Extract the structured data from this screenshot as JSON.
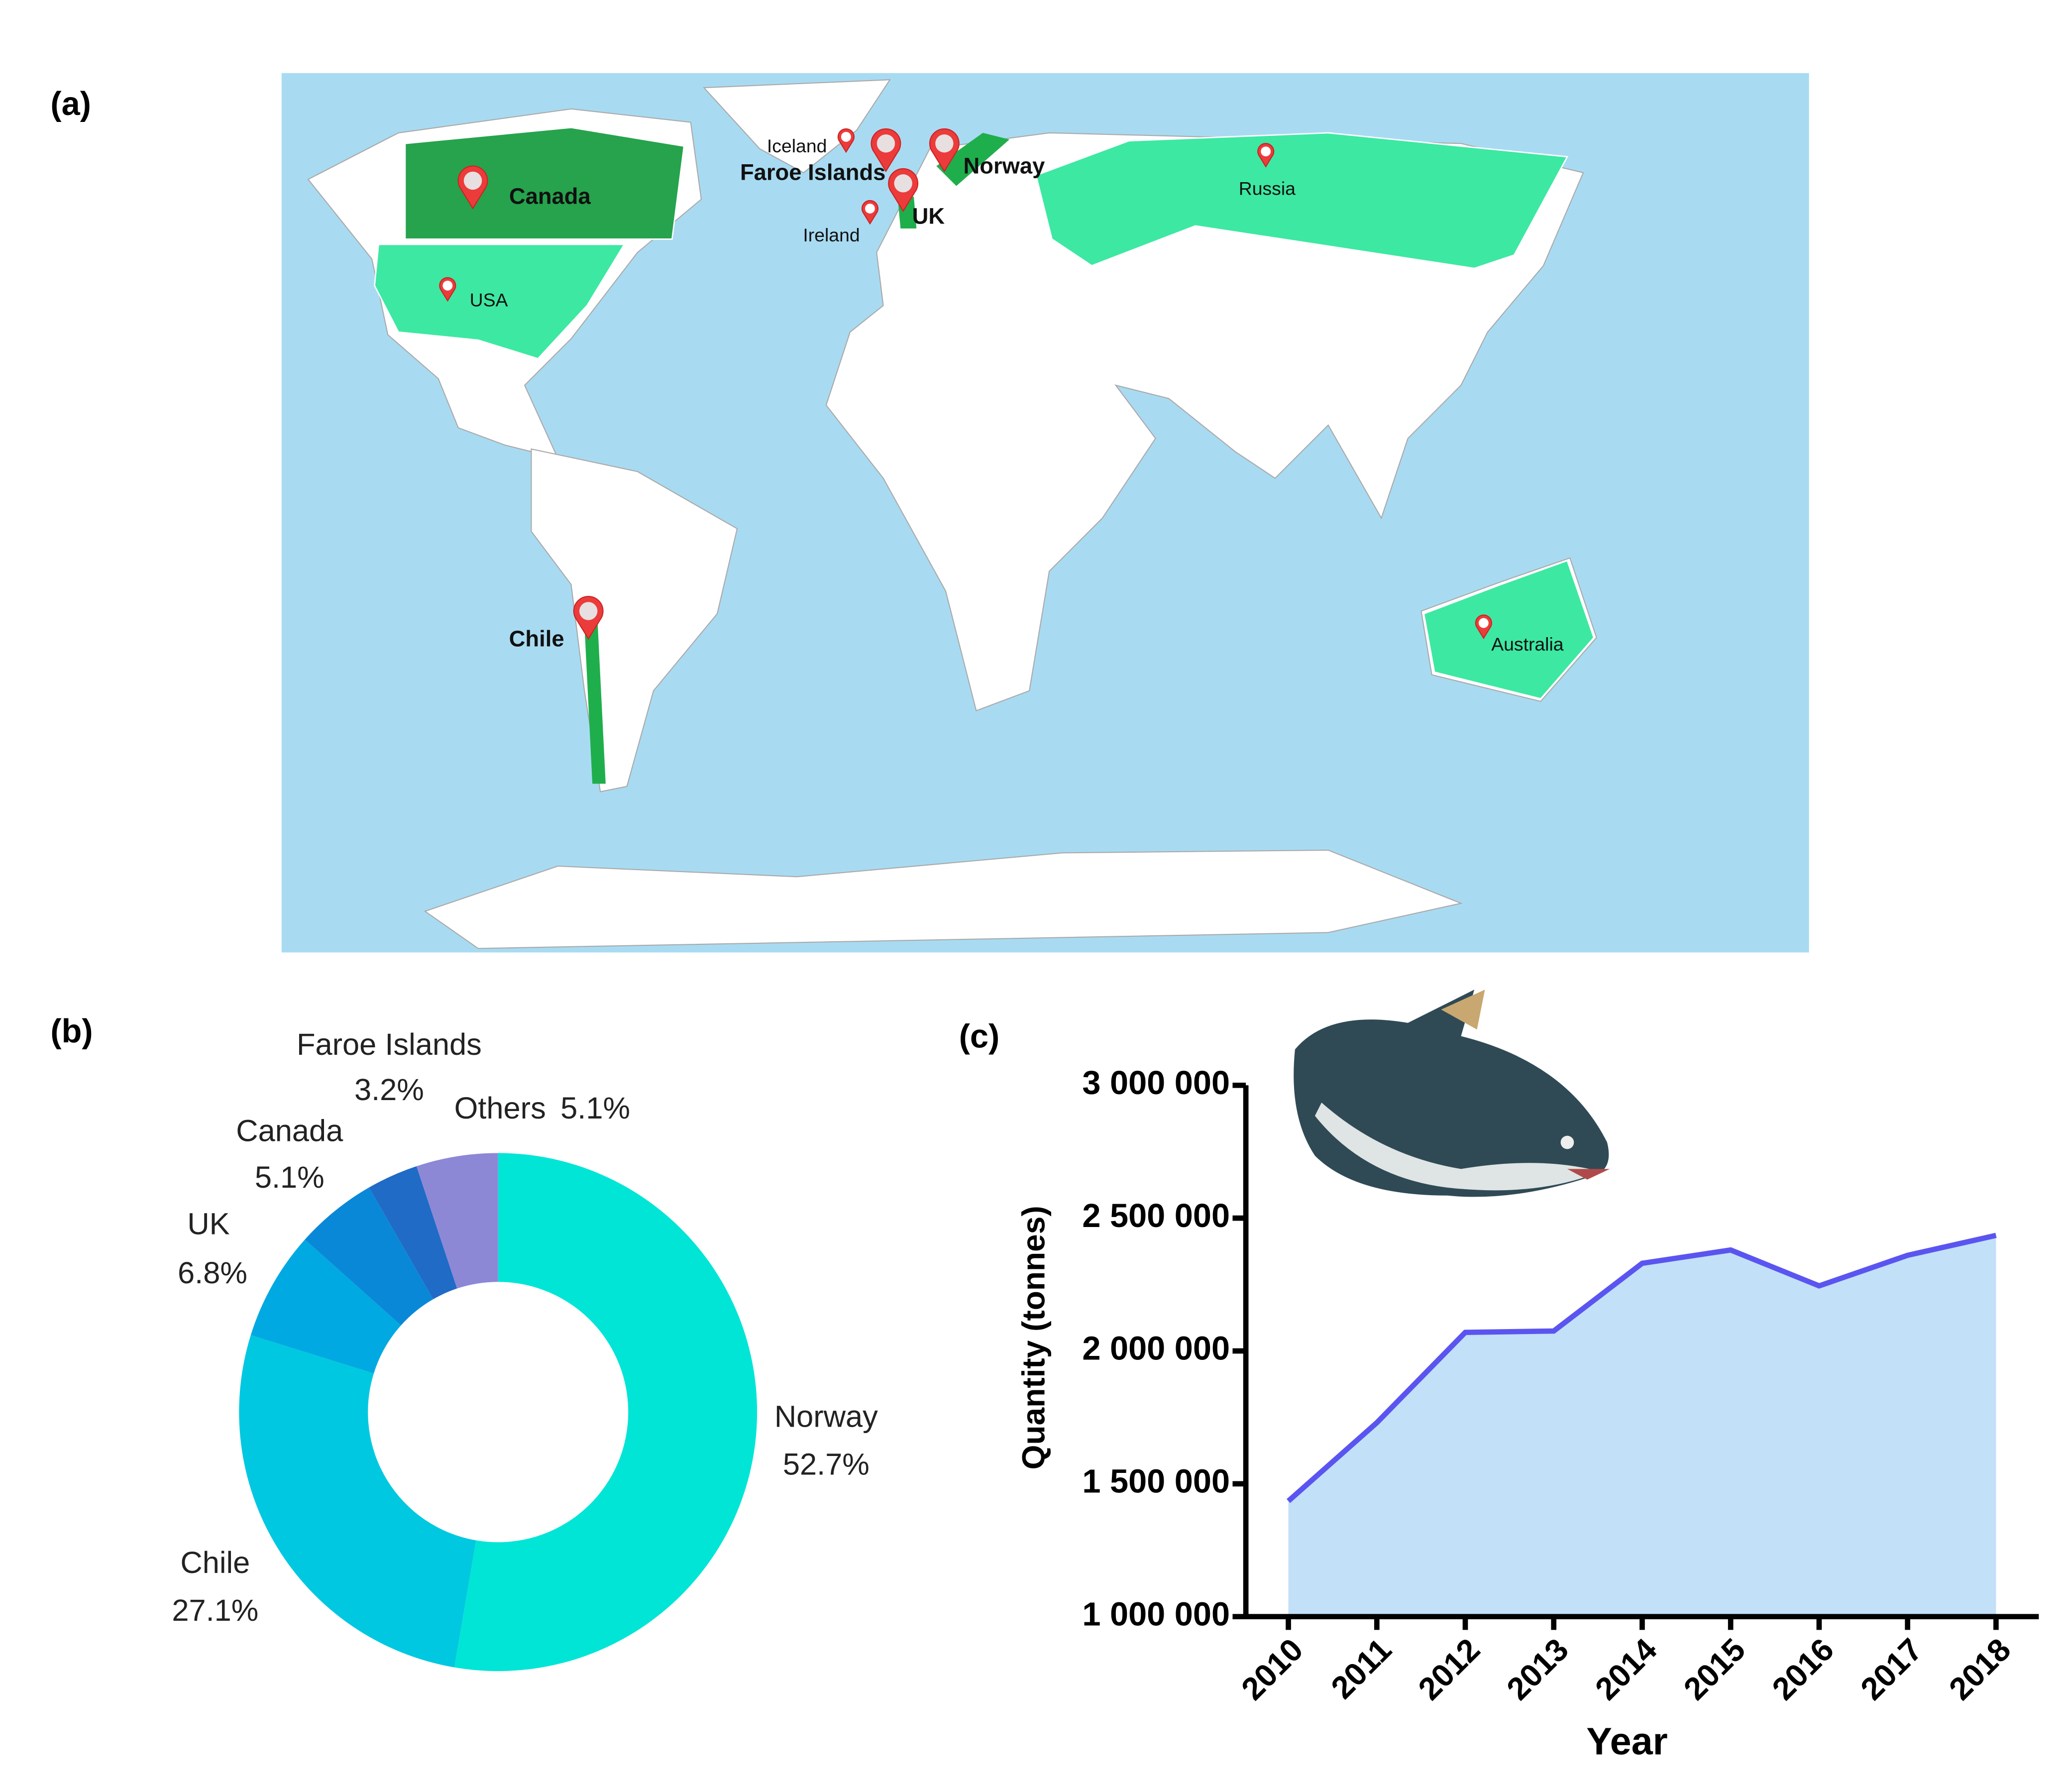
{
  "chart_data": [
    {
      "type": "map",
      "panel": "(a)",
      "places": [
        {
          "name": "Iceland",
          "major": false
        },
        {
          "name": "Faroe Islands",
          "major": true
        },
        {
          "name": "Norway",
          "major": true
        },
        {
          "name": "UK",
          "major": true
        },
        {
          "name": "Ireland",
          "major": false
        },
        {
          "name": "Canada",
          "major": true
        },
        {
          "name": "USA",
          "major": false
        },
        {
          "name": "Russia",
          "major": false
        },
        {
          "name": "Chile",
          "major": true
        },
        {
          "name": "Australia",
          "major": false
        }
      ]
    },
    {
      "type": "donut",
      "panel": "(b)",
      "categories": [
        "Norway",
        "Chile",
        "UK",
        "Canada",
        "Faroe Islands",
        "Others"
      ],
      "values": [
        52.7,
        27.1,
        6.8,
        5.1,
        3.2,
        5.1
      ],
      "value_labels": [
        "52.7%",
        "27.1%",
        "6.8%",
        "5.1%",
        "3.2%",
        "5.1%"
      ],
      "colors": [
        "#00e5d6",
        "#00c8e0",
        "#00a9e2",
        "#0a88d8",
        "#1f6bc6",
        "#8c88d6"
      ]
    },
    {
      "type": "area",
      "panel": "(c)",
      "categories": [
        "2010",
        "2011",
        "2012",
        "2013",
        "2014",
        "2015",
        "2016",
        "2017",
        "2018"
      ],
      "values": [
        1435000,
        1730000,
        2070000,
        2075000,
        2330000,
        2380000,
        2245000,
        2360000,
        2435000
      ],
      "color": "#5a55f0",
      "fill": "#c2e0f8",
      "ylim": [
        1000000,
        3000000
      ],
      "yticks": [
        {
          "value": 1000000,
          "label": "1 000 000"
        },
        {
          "value": 1500000,
          "label": "1 500 000"
        },
        {
          "value": 2000000,
          "label": "2 000 000"
        },
        {
          "value": 2500000,
          "label": "2 500 000"
        },
        {
          "value": 3000000,
          "label": "3 000 000"
        }
      ],
      "ylabel": "Quantity (tonnes)",
      "xlabel": "Year"
    }
  ]
}
